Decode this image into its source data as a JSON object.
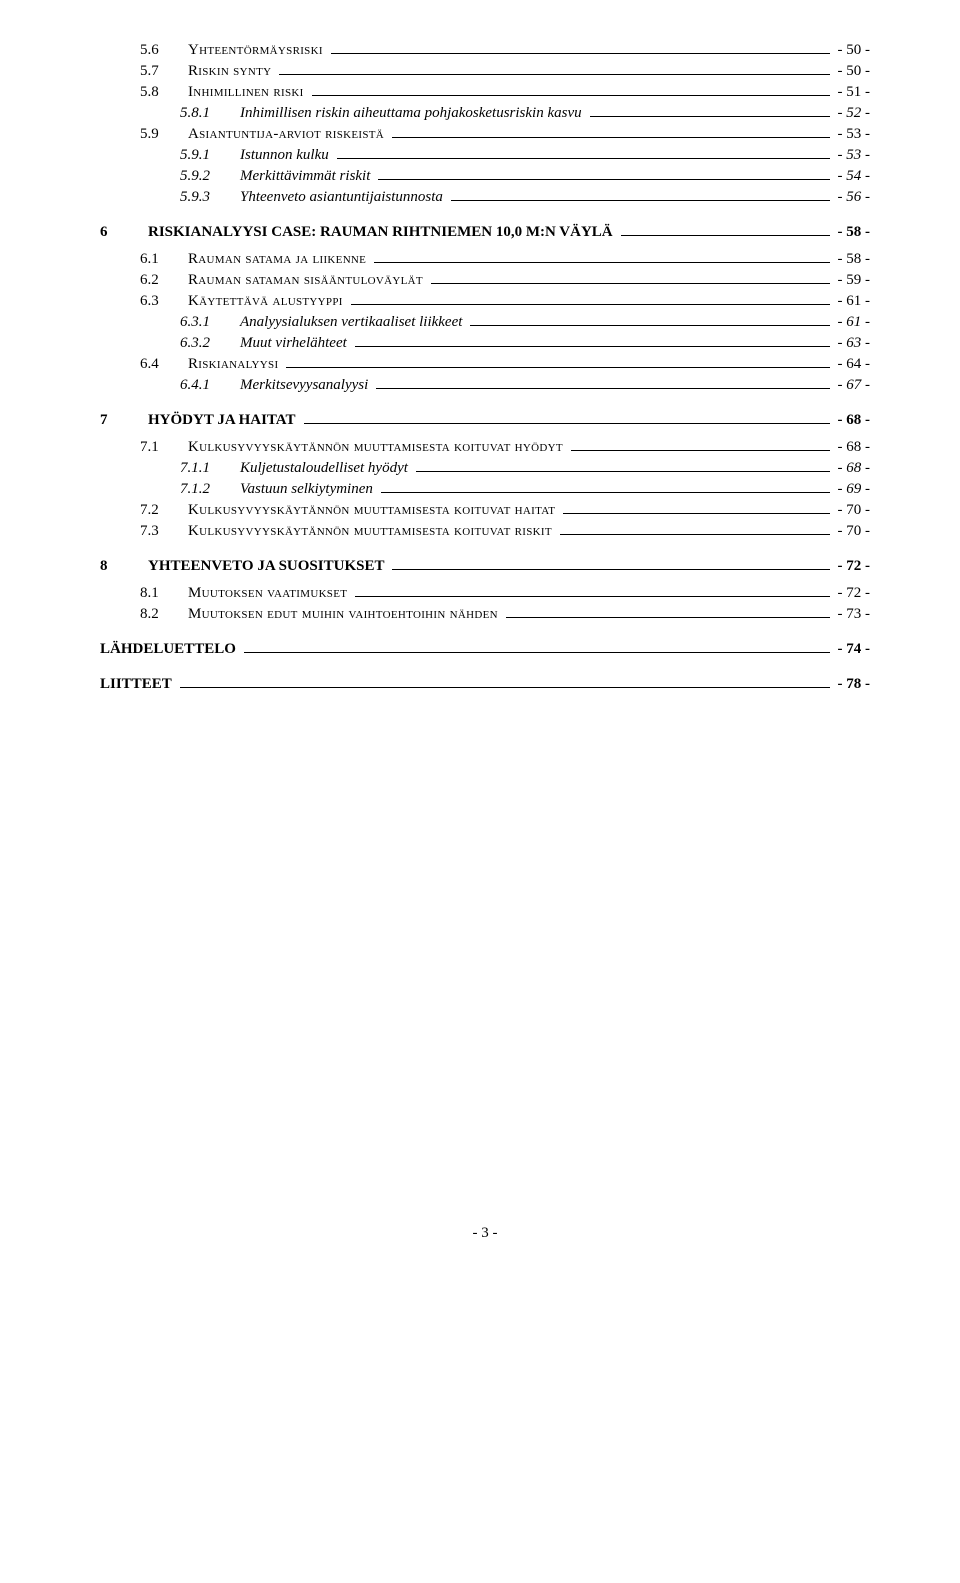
{
  "toc": {
    "items": [
      {
        "level": 2,
        "num": "5.6",
        "label": "Yhteentörmäysriski",
        "page": "- 50 -",
        "smallcaps": true
      },
      {
        "level": 2,
        "num": "5.7",
        "label": "Riskin synty",
        "page": "- 50 -",
        "smallcaps": true
      },
      {
        "level": 2,
        "num": "5.8",
        "label": "Inhimillinen riski",
        "page": "- 51 -",
        "smallcaps": true
      },
      {
        "level": 3,
        "num": "5.8.1",
        "label": "Inhimillisen riskin aiheuttama pohjakosketusriskin kasvu",
        "page": "- 52 -",
        "italic": true
      },
      {
        "level": 2,
        "num": "5.9",
        "label": "Asiantuntija-arviot riskeistä",
        "page": "- 53 -",
        "smallcaps": true
      },
      {
        "level": 3,
        "num": "5.9.1",
        "label": "Istunnon kulku",
        "page": "- 53 -",
        "italic": true
      },
      {
        "level": 3,
        "num": "5.9.2",
        "label": "Merkittävimmät riskit",
        "page": "- 54 -",
        "italic": true
      },
      {
        "level": 3,
        "num": "5.9.3",
        "label": "Yhteenveto asiantuntijaistunnosta",
        "page": "- 56 -",
        "italic": true
      },
      {
        "level": 1,
        "num": "6",
        "label": "RISKIANALYYSI CASE: RAUMAN RIHTNIEMEN 10,0 M:N VÄYLÄ",
        "page": "- 58 -",
        "bold": true,
        "heading": true
      },
      {
        "level": 2,
        "num": "6.1",
        "label": "Rauman satama ja liikenne",
        "page": "- 58 -",
        "smallcaps": true
      },
      {
        "level": 2,
        "num": "6.2",
        "label": "Rauman sataman sisääntuloväylät",
        "page": "- 59 -",
        "smallcaps": true
      },
      {
        "level": 2,
        "num": "6.3",
        "label": "Käytettävä alustyyppi",
        "page": "- 61 -",
        "smallcaps": true
      },
      {
        "level": 3,
        "num": "6.3.1",
        "label": "Analyysialuksen vertikaaliset liikkeet",
        "page": "- 61 -",
        "italic": true
      },
      {
        "level": 3,
        "num": "6.3.2",
        "label": "Muut virhelähteet",
        "page": "- 63 -",
        "italic": true
      },
      {
        "level": 2,
        "num": "6.4",
        "label": "Riskianalyysi",
        "page": "- 64 -",
        "smallcaps": true
      },
      {
        "level": 3,
        "num": "6.4.1",
        "label": "Merkitsevyysanalyysi",
        "page": "- 67 -",
        "italic": true
      },
      {
        "level": 1,
        "num": "7",
        "label": "HYÖDYT JA HAITAT",
        "page": "- 68 -",
        "bold": true,
        "heading": true
      },
      {
        "level": 2,
        "num": "7.1",
        "label": "Kulkusyvyyskäytännön muuttamisesta koituvat hyödyt",
        "page": "- 68 -",
        "smallcaps": true
      },
      {
        "level": 3,
        "num": "7.1.1",
        "label": "Kuljetustaloudelliset hyödyt",
        "page": "- 68 -",
        "italic": true
      },
      {
        "level": 3,
        "num": "7.1.2",
        "label": "Vastuun selkiytyminen",
        "page": "- 69 -",
        "italic": true
      },
      {
        "level": 2,
        "num": "7.2",
        "label": "Kulkusyvyyskäytännön muuttamisesta koituvat haitat",
        "page": "- 70 -",
        "smallcaps": true
      },
      {
        "level": 2,
        "num": "7.3",
        "label": "Kulkusyvyyskäytännön muuttamisesta koituvat riskit",
        "page": "- 70 -",
        "smallcaps": true
      },
      {
        "level": 1,
        "num": "8",
        "label": "YHTEENVETO JA SUOSITUKSET",
        "page": "- 72 -",
        "bold": true,
        "heading": true
      },
      {
        "level": 2,
        "num": "8.1",
        "label": "Muutoksen vaatimukset",
        "page": "- 72 -",
        "smallcaps": true
      },
      {
        "level": 2,
        "num": "8.2",
        "label": "Muutoksen edut muihin vaihtoehtoihin nähden",
        "page": "- 73 -",
        "smallcaps": true
      },
      {
        "level": 1,
        "num": "",
        "label": "LÄHDELUETTELO",
        "page": "- 74 -",
        "bold": true,
        "standalone": true
      },
      {
        "level": 1,
        "num": "",
        "label": "LIITTEET",
        "page": "- 78 -",
        "bold": true,
        "standalone": true
      }
    ]
  },
  "footer": {
    "page_number": "- 3 -"
  }
}
